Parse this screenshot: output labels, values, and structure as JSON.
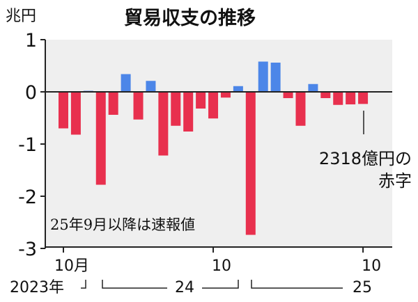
{
  "chart_data": {
    "type": "bar",
    "title": "貿易収支の推移",
    "ylabel": "兆円",
    "ylim": [
      -3,
      1
    ],
    "yticks": [
      1,
      0,
      -1,
      -2,
      -3
    ],
    "ytick_labels": [
      "1",
      "0",
      "-1",
      "-2",
      "-3"
    ],
    "grid": false,
    "months": [
      "2023-10",
      "2023-11",
      "2023-12",
      "2024-01",
      "2024-02",
      "2024-03",
      "2024-04",
      "2024-05",
      "2024-06",
      "2024-07",
      "2024-08",
      "2024-09",
      "2024-10",
      "2024-11",
      "2024-12",
      "2025-01",
      "2025-02",
      "2025-03",
      "2025-04",
      "2025-05",
      "2025-06",
      "2025-07",
      "2025-08",
      "2025-09",
      "2025-10"
    ],
    "values": [
      -0.7,
      -0.82,
      0.02,
      -1.78,
      -0.44,
      0.34,
      -0.53,
      0.21,
      -1.22,
      -0.65,
      -0.76,
      -0.32,
      -0.51,
      -0.11,
      0.11,
      -2.74,
      0.58,
      0.56,
      -0.12,
      -0.65,
      0.15,
      -0.12,
      -0.25,
      -0.24,
      -0.2318
    ],
    "positive_color": "#4c86e8",
    "negative_color": "#e8304e",
    "x_tick_labels": [
      {
        "index": 0,
        "label": "10月"
      },
      {
        "index": 12,
        "label": "10"
      },
      {
        "index": 24,
        "label": "10"
      }
    ],
    "year_labels": [
      "2023年",
      "24",
      "25"
    ],
    "annotations": {
      "prelim_note": "25年9月以降は速報値",
      "last_value_line1": "2318億円の",
      "last_value_line2": "赤字"
    }
  }
}
